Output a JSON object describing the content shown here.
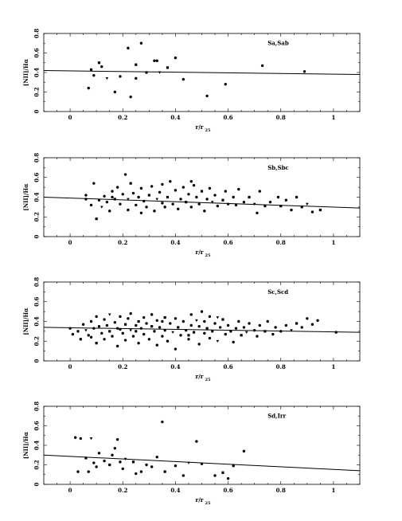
{
  "chart_data": [
    {
      "type": "scatter",
      "panel_label": "Sa,Sab",
      "xlabel": "r/r",
      "xlabel_sub": "25",
      "ylabel": "[NII]/Hα",
      "xlim": [
        -0.1,
        1.1
      ],
      "ylim": [
        0,
        0.8
      ],
      "xticks": [
        {
          "v": 0,
          "label": "0"
        },
        {
          "v": 0.2,
          "label": "0.2"
        },
        {
          "v": 0.4,
          "label": "0.4"
        },
        {
          "v": 0.6,
          "label": "0.6"
        },
        {
          "v": 0.8,
          "label": "0.8"
        },
        {
          "v": 1.0,
          "label": "1"
        }
      ],
      "yticks": [
        {
          "v": 0,
          "label": "0"
        },
        {
          "v": 0.2,
          "label": "0.2"
        },
        {
          "v": 0.4,
          "label": "0.4"
        },
        {
          "v": 0.6,
          "label": "0.6"
        },
        {
          "v": 0.8,
          "label": "0.8"
        }
      ],
      "fit": {
        "x0": -0.1,
        "y0": 0.42,
        "x1": 1.1,
        "y1": 0.38
      },
      "points": [
        [
          0.07,
          0.24
        ],
        [
          0.08,
          0.43
        ],
        [
          0.09,
          0.37
        ],
        [
          0.11,
          0.5
        ],
        [
          0.12,
          0.46
        ],
        [
          0.14,
          0.34
        ],
        [
          0.17,
          0.2
        ],
        [
          0.19,
          0.36
        ],
        [
          0.22,
          0.65
        ],
        [
          0.23,
          0.15
        ],
        [
          0.25,
          0.48
        ],
        [
          0.25,
          0.34
        ],
        [
          0.27,
          0.7
        ],
        [
          0.29,
          0.4
        ],
        [
          0.32,
          0.52
        ],
        [
          0.33,
          0.52
        ],
        [
          0.34,
          0.4
        ],
        [
          0.37,
          0.45
        ],
        [
          0.4,
          0.55
        ],
        [
          0.43,
          0.33
        ],
        [
          0.52,
          0.16
        ],
        [
          0.59,
          0.28
        ],
        [
          0.73,
          0.47
        ],
        [
          0.89,
          0.41
        ]
      ]
    },
    {
      "type": "scatter",
      "panel_label": "Sb,Sbc",
      "xlabel": "r/r",
      "xlabel_sub": "25",
      "ylabel": "[NII]/Hα",
      "xlim": [
        -0.1,
        1.1
      ],
      "ylim": [
        0,
        0.8
      ],
      "xticks": [
        {
          "v": 0,
          "label": "0"
        },
        {
          "v": 0.2,
          "label": "0.2"
        },
        {
          "v": 0.4,
          "label": "0.4"
        },
        {
          "v": 0.6,
          "label": "0.6"
        },
        {
          "v": 0.8,
          "label": "0.8"
        },
        {
          "v": 1.0,
          "label": "1"
        }
      ],
      "yticks": [
        {
          "v": 0,
          "label": "0"
        },
        {
          "v": 0.2,
          "label": "0.2"
        },
        {
          "v": 0.4,
          "label": "0.4"
        },
        {
          "v": 0.6,
          "label": "0.6"
        },
        {
          "v": 0.8,
          "label": "0.8"
        }
      ],
      "fit": {
        "x0": -0.1,
        "y0": 0.4,
        "x1": 1.1,
        "y1": 0.29
      },
      "points": [
        [
          0.06,
          0.42
        ],
        [
          0.06,
          0.38
        ],
        [
          0.09,
          0.54
        ],
        [
          0.1,
          0.18
        ],
        [
          0.11,
          0.37
        ],
        [
          0.12,
          0.3
        ],
        [
          0.13,
          0.41
        ],
        [
          0.14,
          0.35
        ],
        [
          0.15,
          0.26
        ],
        [
          0.16,
          0.46
        ],
        [
          0.17,
          0.38
        ],
        [
          0.18,
          0.5
        ],
        [
          0.19,
          0.33
        ],
        [
          0.2,
          0.43
        ],
        [
          0.21,
          0.63
        ],
        [
          0.22,
          0.27
        ],
        [
          0.22,
          0.38
        ],
        [
          0.23,
          0.54
        ],
        [
          0.24,
          0.44
        ],
        [
          0.25,
          0.32
        ],
        [
          0.26,
          0.4
        ],
        [
          0.27,
          0.49
        ],
        [
          0.28,
          0.36
        ],
        [
          0.29,
          0.3
        ],
        [
          0.3,
          0.42
        ],
        [
          0.31,
          0.51
        ],
        [
          0.32,
          0.26
        ],
        [
          0.33,
          0.38
        ],
        [
          0.34,
          0.45
        ],
        [
          0.35,
          0.34
        ],
        [
          0.36,
          0.3
        ],
        [
          0.37,
          0.4
        ],
        [
          0.38,
          0.56
        ],
        [
          0.39,
          0.33
        ],
        [
          0.4,
          0.47
        ],
        [
          0.41,
          0.28
        ],
        [
          0.42,
          0.38
        ],
        [
          0.43,
          0.5
        ],
        [
          0.44,
          0.35
        ],
        [
          0.45,
          0.43
        ],
        [
          0.46,
          0.3
        ],
        [
          0.46,
          0.56
        ],
        [
          0.47,
          0.52
        ],
        [
          0.48,
          0.4
        ],
        [
          0.49,
          0.33
        ],
        [
          0.5,
          0.46
        ],
        [
          0.51,
          0.26
        ],
        [
          0.52,
          0.38
        ],
        [
          0.53,
          0.49
        ],
        [
          0.54,
          0.35
        ],
        [
          0.55,
          0.42
        ],
        [
          0.56,
          0.31
        ],
        [
          0.58,
          0.37
        ],
        [
          0.59,
          0.46
        ],
        [
          0.6,
          0.33
        ],
        [
          0.62,
          0.4
        ],
        [
          0.63,
          0.32
        ],
        [
          0.64,
          0.48
        ],
        [
          0.66,
          0.35
        ],
        [
          0.68,
          0.4
        ],
        [
          0.7,
          0.33
        ],
        [
          0.71,
          0.24
        ],
        [
          0.72,
          0.46
        ],
        [
          0.74,
          0.31
        ],
        [
          0.76,
          0.35
        ],
        [
          0.79,
          0.4
        ],
        [
          0.8,
          0.31
        ],
        [
          0.82,
          0.37
        ],
        [
          0.84,
          0.27
        ],
        [
          0.86,
          0.4
        ],
        [
          0.88,
          0.3
        ],
        [
          0.9,
          0.33
        ],
        [
          0.92,
          0.25
        ],
        [
          0.95,
          0.27
        ],
        [
          0.08,
          0.32
        ],
        [
          0.16,
          0.4
        ],
        [
          0.27,
          0.24
        ],
        [
          0.35,
          0.53
        ]
      ]
    },
    {
      "type": "scatter",
      "panel_label": "Sc,Scd",
      "xlabel": "r/r",
      "xlabel_sub": "25",
      "ylabel": "[NII]/Hα",
      "xlim": [
        -0.1,
        1.1
      ],
      "ylim": [
        0,
        0.8
      ],
      "xticks": [
        {
          "v": 0,
          "label": "0"
        },
        {
          "v": 0.2,
          "label": "0.2"
        },
        {
          "v": 0.4,
          "label": "0.4"
        },
        {
          "v": 0.6,
          "label": "0.6"
        },
        {
          "v": 0.8,
          "label": "0.8"
        },
        {
          "v": 1.0,
          "label": "1"
        }
      ],
      "yticks": [
        {
          "v": 0,
          "label": "0"
        },
        {
          "v": 0.2,
          "label": "0.2"
        },
        {
          "v": 0.4,
          "label": "0.4"
        },
        {
          "v": 0.6,
          "label": "0.6"
        },
        {
          "v": 0.8,
          "label": "0.8"
        }
      ],
      "fit": {
        "x0": -0.1,
        "y0": 0.34,
        "x1": 1.1,
        "y1": 0.29
      },
      "points": [
        [
          0.0,
          0.33
        ],
        [
          0.01,
          0.27
        ],
        [
          0.03,
          0.3
        ],
        [
          0.04,
          0.22
        ],
        [
          0.05,
          0.37
        ],
        [
          0.06,
          0.31
        ],
        [
          0.07,
          0.26
        ],
        [
          0.08,
          0.4
        ],
        [
          0.09,
          0.33
        ],
        [
          0.1,
          0.45
        ],
        [
          0.1,
          0.18
        ],
        [
          0.11,
          0.35
        ],
        [
          0.12,
          0.28
        ],
        [
          0.13,
          0.42
        ],
        [
          0.13,
          0.22
        ],
        [
          0.14,
          0.36
        ],
        [
          0.15,
          0.47
        ],
        [
          0.15,
          0.3
        ],
        [
          0.16,
          0.25
        ],
        [
          0.17,
          0.39
        ],
        [
          0.18,
          0.33
        ],
        [
          0.18,
          0.15
        ],
        [
          0.19,
          0.45
        ],
        [
          0.2,
          0.28
        ],
        [
          0.21,
          0.37
        ],
        [
          0.21,
          0.21
        ],
        [
          0.22,
          0.43
        ],
        [
          0.23,
          0.31
        ],
        [
          0.23,
          0.48
        ],
        [
          0.24,
          0.25
        ],
        [
          0.25,
          0.36
        ],
        [
          0.26,
          0.4
        ],
        [
          0.26,
          0.18
        ],
        [
          0.27,
          0.33
        ],
        [
          0.28,
          0.44
        ],
        [
          0.28,
          0.27
        ],
        [
          0.29,
          0.38
        ],
        [
          0.3,
          0.22
        ],
        [
          0.31,
          0.35
        ],
        [
          0.31,
          0.47
        ],
        [
          0.32,
          0.3
        ],
        [
          0.33,
          0.41
        ],
        [
          0.33,
          0.16
        ],
        [
          0.34,
          0.34
        ],
        [
          0.35,
          0.25
        ],
        [
          0.36,
          0.44
        ],
        [
          0.36,
          0.31
        ],
        [
          0.37,
          0.2
        ],
        [
          0.38,
          0.38
        ],
        [
          0.39,
          0.29
        ],
        [
          0.4,
          0.43
        ],
        [
          0.4,
          0.12
        ],
        [
          0.41,
          0.34
        ],
        [
          0.42,
          0.26
        ],
        [
          0.43,
          0.4
        ],
        [
          0.44,
          0.31
        ],
        [
          0.45,
          0.22
        ],
        [
          0.46,
          0.36
        ],
        [
          0.46,
          0.47
        ],
        [
          0.47,
          0.29
        ],
        [
          0.48,
          0.41
        ],
        [
          0.49,
          0.17
        ],
        [
          0.49,
          0.35
        ],
        [
          0.5,
          0.5
        ],
        [
          0.51,
          0.28
        ],
        [
          0.51,
          0.4
        ],
        [
          0.52,
          0.33
        ],
        [
          0.53,
          0.23
        ],
        [
          0.53,
          0.45
        ],
        [
          0.54,
          0.3
        ],
        [
          0.55,
          0.38
        ],
        [
          0.56,
          0.2
        ],
        [
          0.57,
          0.34
        ],
        [
          0.58,
          0.42
        ],
        [
          0.59,
          0.27
        ],
        [
          0.6,
          0.36
        ],
        [
          0.61,
          0.3
        ],
        [
          0.62,
          0.19
        ],
        [
          0.63,
          0.33
        ],
        [
          0.64,
          0.4
        ],
        [
          0.65,
          0.26
        ],
        [
          0.66,
          0.34
        ],
        [
          0.67,
          0.29
        ],
        [
          0.68,
          0.38
        ],
        [
          0.7,
          0.31
        ],
        [
          0.71,
          0.25
        ],
        [
          0.72,
          0.36
        ],
        [
          0.74,
          0.3
        ],
        [
          0.75,
          0.4
        ],
        [
          0.77,
          0.27
        ],
        [
          0.78,
          0.34
        ],
        [
          0.8,
          0.3
        ],
        [
          0.82,
          0.36
        ],
        [
          0.84,
          0.31
        ],
        [
          0.86,
          0.38
        ],
        [
          0.88,
          0.34
        ],
        [
          0.9,
          0.43
        ],
        [
          0.92,
          0.37
        ],
        [
          0.94,
          0.41
        ],
        [
          1.01,
          0.29
        ],
        [
          0.25,
          0.3
        ],
        [
          0.45,
          0.26
        ],
        [
          0.35,
          0.4
        ],
        [
          0.19,
          0.32
        ],
        [
          0.56,
          0.44
        ],
        [
          0.08,
          0.24
        ]
      ]
    },
    {
      "type": "scatter",
      "panel_label": "Sd,Irr",
      "xlabel": "r/r",
      "xlabel_sub": "25",
      "ylabel": "[NII]/Hα",
      "xlim": [
        -0.1,
        1.1
      ],
      "ylim": [
        0,
        0.8
      ],
      "xticks": [
        {
          "v": 0,
          "label": "0"
        },
        {
          "v": 0.2,
          "label": "0.2"
        },
        {
          "v": 0.4,
          "label": "0.4"
        },
        {
          "v": 0.6,
          "label": "0.6"
        },
        {
          "v": 0.8,
          "label": "0.8"
        },
        {
          "v": 1.0,
          "label": "1"
        }
      ],
      "yticks": [
        {
          "v": 0,
          "label": "0"
        },
        {
          "v": 0.2,
          "label": "0.2"
        },
        {
          "v": 0.4,
          "label": "0.4"
        },
        {
          "v": 0.6,
          "label": "0.6"
        },
        {
          "v": 0.8,
          "label": "0.8"
        }
      ],
      "fit": {
        "x0": -0.1,
        "y0": 0.3,
        "x1": 1.1,
        "y1": 0.14
      },
      "points": [
        [
          0.02,
          0.48
        ],
        [
          0.03,
          0.13
        ],
        [
          0.04,
          0.47
        ],
        [
          0.06,
          0.27
        ],
        [
          0.07,
          0.13
        ],
        [
          0.08,
          0.47
        ],
        [
          0.09,
          0.22
        ],
        [
          0.1,
          0.18
        ],
        [
          0.11,
          0.32
        ],
        [
          0.13,
          0.24
        ],
        [
          0.15,
          0.2
        ],
        [
          0.16,
          0.3
        ],
        [
          0.17,
          0.37
        ],
        [
          0.18,
          0.46
        ],
        [
          0.19,
          0.23
        ],
        [
          0.2,
          0.16
        ],
        [
          0.21,
          0.26
        ],
        [
          0.24,
          0.23
        ],
        [
          0.25,
          0.11
        ],
        [
          0.27,
          0.13
        ],
        [
          0.29,
          0.2
        ],
        [
          0.31,
          0.18
        ],
        [
          0.33,
          0.28
        ],
        [
          0.35,
          0.64
        ],
        [
          0.36,
          0.13
        ],
        [
          0.4,
          0.19
        ],
        [
          0.43,
          0.09
        ],
        [
          0.45,
          0.22
        ],
        [
          0.48,
          0.44
        ],
        [
          0.5,
          0.21
        ],
        [
          0.55,
          0.09
        ],
        [
          0.58,
          0.12
        ],
        [
          0.6,
          0.06
        ],
        [
          0.62,
          0.19
        ],
        [
          0.66,
          0.34
        ]
      ]
    }
  ]
}
